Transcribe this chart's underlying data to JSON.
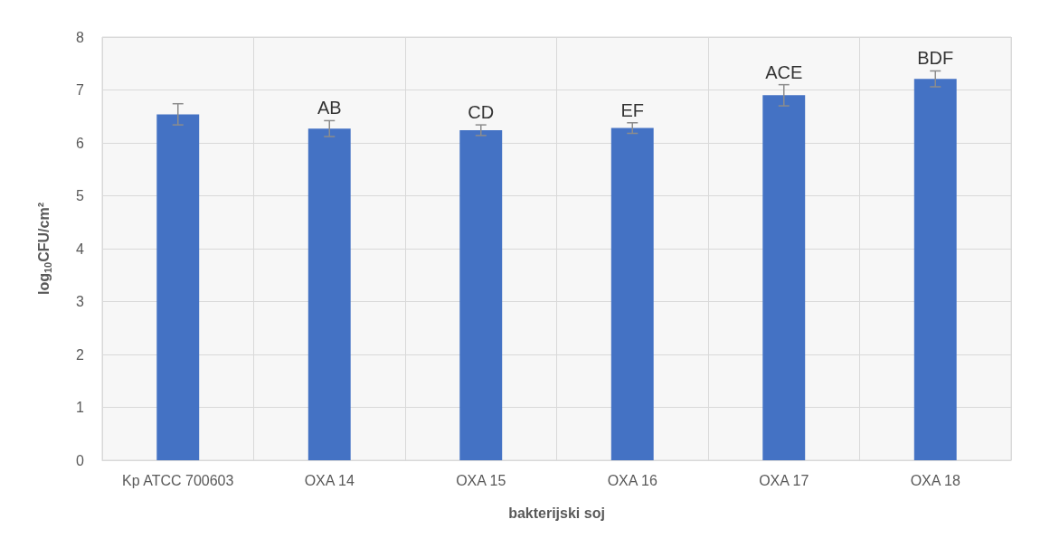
{
  "chart_data": {
    "type": "bar",
    "xlabel": "bakterijski soj",
    "ylabel": "log$_{10}$CFU/cm²",
    "categories": [
      "Kp ATCC 700603",
      "OXA 14",
      "OXA 15",
      "OXA 16",
      "OXA 17",
      "OXA 18"
    ],
    "values": [
      6.54,
      6.27,
      6.24,
      6.28,
      6.9,
      7.21
    ],
    "errors": [
      0.2,
      0.15,
      0.1,
      0.1,
      0.2,
      0.15
    ],
    "color": "#4472c4",
    "ylim": [
      0,
      8
    ],
    "yticks": [
      0,
      1,
      2,
      3,
      4,
      5,
      6,
      7,
      8
    ],
    "grid": true,
    "annotations": [
      {
        "text": "AB",
        "x": "OXA 14",
        "y": 6.42
      },
      {
        "text": "CD",
        "x": "OXA 15",
        "y": 6.34
      },
      {
        "text": "EF",
        "x": "OXA 16",
        "y": 6.38
      },
      {
        "text": "ACE",
        "x": "OXA 17",
        "y": 7.1
      },
      {
        "text": "BDF",
        "x": "OXA 18",
        "y": 7.36
      }
    ]
  }
}
